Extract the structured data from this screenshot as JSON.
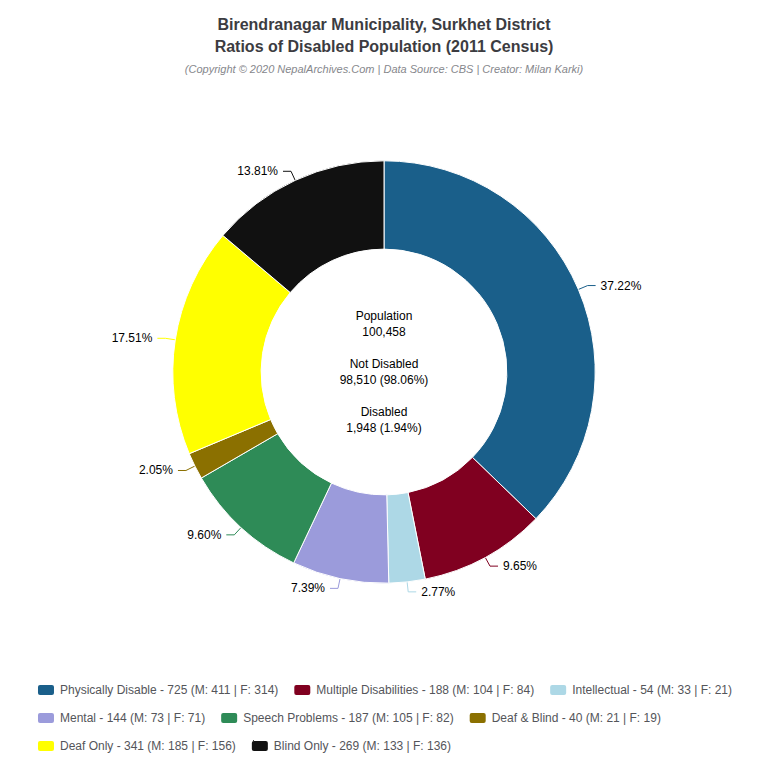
{
  "chart_data": {
    "type": "pie",
    "title": "Birendranagar Municipality, Surkhet District\nRatios of Disabled Population (2011 Census)",
    "subtitle": "(Copyright © 2020 NepalArchives.Com | Data Source: CBS | Creator: Milan Karki)",
    "categories": [
      "Physically Disable - 725 (M: 411 | F: 314)",
      "Multiple Disabilities - 188 (M: 104 | F: 84)",
      "Intellectual - 54 (M: 33 | F: 21)",
      "Mental - 144 (M: 73 | F: 71)",
      "Speech Problems - 187 (M: 105 | F: 82)",
      "Deaf & Blind - 40 (M: 21 | F: 19)",
      "Deaf Only - 341 (M: 185 | F: 156)",
      "Blind Only - 269 (M: 133 | F: 136)"
    ],
    "values": [
      37.22,
      9.65,
      2.77,
      7.39,
      9.6,
      2.05,
      17.51,
      13.81
    ],
    "value_labels": [
      "37.22%",
      "9.65%",
      "2.77%",
      "7.39%",
      "9.60%",
      "2.05%",
      "17.51%",
      "13.81%"
    ],
    "colors": [
      "#1a5f8a",
      "#800020",
      "#add8e6",
      "#9b9bdb",
      "#2e8b57",
      "#8b7000",
      "#ffff00",
      "#111111"
    ],
    "data_labels": true,
    "legend": "bottom",
    "annotations": [
      "Population\n100,458\n\nNot Disabled\n98,510 (98.06%)\n\nDisabled\n1,948 (1.94%)"
    ]
  }
}
